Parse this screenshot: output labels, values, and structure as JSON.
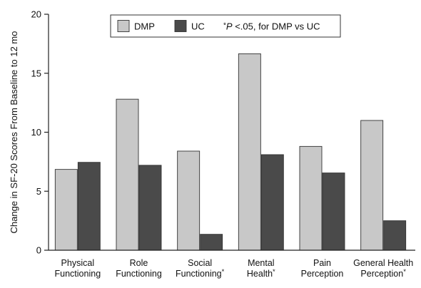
{
  "chart_data": {
    "type": "bar",
    "title": "",
    "xlabel": "",
    "ylabel": "Change in SF-20 Scores From Baseline  to 12 mo",
    "ylim": [
      0,
      20
    ],
    "yticks": [
      0,
      5,
      10,
      15,
      20
    ],
    "grid": false,
    "legend_position": "top-right",
    "categories": [
      {
        "lines": [
          "Physical",
          "Functioning"
        ],
        "star": false
      },
      {
        "lines": [
          "Role",
          "Functioning"
        ],
        "star": false
      },
      {
        "lines": [
          "Social",
          "Functioning"
        ],
        "star": true
      },
      {
        "lines": [
          "Mental",
          "Health"
        ],
        "star": true
      },
      {
        "lines": [
          "Pain",
          "Perception"
        ],
        "star": false
      },
      {
        "lines": [
          "General Health",
          "Perception"
        ],
        "star": true
      }
    ],
    "series": [
      {
        "name": "DMP",
        "color": "#c8c8c8",
        "values": [
          6.85,
          12.8,
          8.4,
          16.65,
          8.8,
          11.0
        ]
      },
      {
        "name": "UC",
        "color": "#4a4a4a",
        "values": [
          7.45,
          7.2,
          1.35,
          8.1,
          6.55,
          2.5
        ]
      }
    ],
    "legend_note": {
      "star": "*",
      "p": "P",
      "rest": " <.05, for DMP vs UC"
    }
  }
}
